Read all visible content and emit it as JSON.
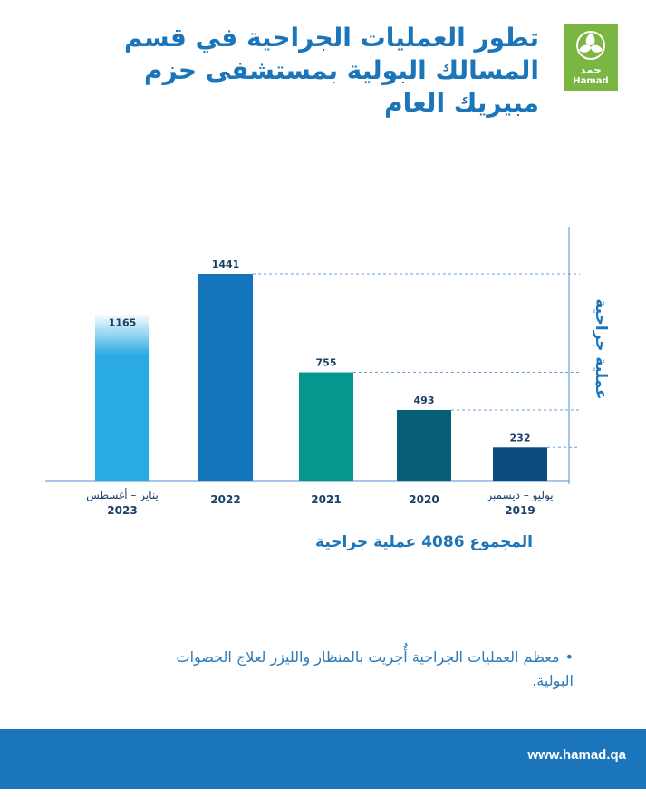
{
  "header": {
    "title": "تطور العمليات الجراحية في قسم المسالك البولية بمستشفى حزم مبيريك العام",
    "logo_text_ar": "حمد",
    "logo_text_en": "Hamad"
  },
  "chart_data": {
    "type": "bar",
    "categories": [
      {
        "line1": "يناير – أغسطس",
        "line2": "2023"
      },
      {
        "line1": "2022",
        "line2": ""
      },
      {
        "line1": "2021",
        "line2": ""
      },
      {
        "line1": "2020",
        "line2": ""
      },
      {
        "line1": "يوليو – ديسمبر",
        "line2": "2019"
      }
    ],
    "values": [
      1165,
      1441,
      755,
      493,
      232
    ],
    "colors": [
      "#2aaae2",
      "#1474bc",
      "#04968f",
      "#065f75",
      "#0d4a80"
    ],
    "ylabel": "عملية جراحية",
    "ylim": [
      0,
      1441
    ],
    "axis_color": "#4f8ed0"
  },
  "total_text": "المجموع 4086 عملية جراحية",
  "note": {
    "bullet": "•",
    "text": "معظم العمليات الجراحية أُجريت بالمنظار والليزر لعلاج الحصوات البولية."
  },
  "footer": {
    "url": "www.hamad.qa"
  }
}
